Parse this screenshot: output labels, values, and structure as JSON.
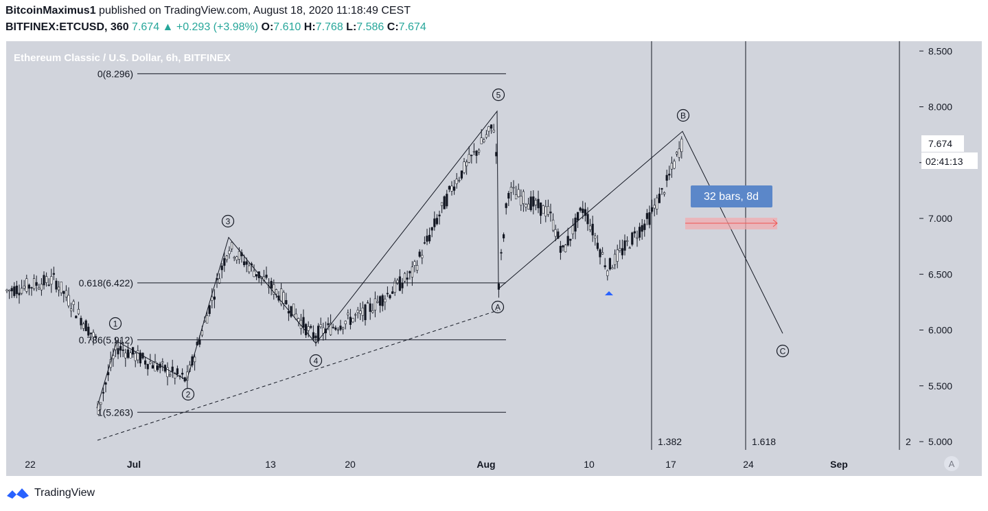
{
  "header": {
    "author": "BitcoinMaximus1",
    "published_text": "published on TradingView.com, August 18, 2020 11:18:49 CEST",
    "symbol": "BITFINEX:ETCUSD, 360",
    "last": "7.674",
    "change": "+0.293 (+3.98%)",
    "o_label": "O:",
    "o_val": "7.610",
    "h_label": "H:",
    "h_val": "7.768",
    "l_label": "L:",
    "l_val": "7.586",
    "c_label": "C:",
    "c_val": "7.674"
  },
  "colors": {
    "up": "#26a69a",
    "plot_bg": "#d1d4dc",
    "accent": "#2962ff"
  },
  "footer": {
    "brand": "TradingView",
    "icon": "tradingview-logo-icon"
  },
  "chart_data": {
    "type": "candlestick",
    "title": "Ethereum Classic / U.S. Dollar, 6h, BITFINEX",
    "ylim": [
      4.9,
      8.6
    ],
    "y_ticks": [
      "8.500",
      "8.000",
      "7.500",
      "7.000",
      "6.500",
      "6.000",
      "5.500",
      "5.000"
    ],
    "y_tick_values": [
      8.5,
      8.0,
      7.5,
      7.0,
      6.5,
      6.0,
      5.5,
      5.0
    ],
    "x_ticks": [
      "22",
      "Jul",
      "13",
      "20",
      "Aug",
      "10",
      "17",
      "24",
      "Sep"
    ],
    "last_price_label": "7.674",
    "countdown_label": "02:41:13",
    "scale_button": "A",
    "fib_levels": [
      {
        "label": "0(8.296)",
        "value": 8.296
      },
      {
        "label": "0.618(6.422)",
        "value": 6.422
      },
      {
        "label": "0.786(5.912)",
        "value": 5.912
      },
      {
        "label": "1(5.263)",
        "value": 5.263
      }
    ],
    "fib_time_labels": [
      "1.382",
      "1.618",
      "2"
    ],
    "wave_labels": [
      "1",
      "2",
      "3",
      "4",
      "5",
      "A",
      "B",
      "C"
    ],
    "wave_path": [
      {
        "label": "start",
        "y": 5.3
      },
      {
        "label": "1",
        "y": 5.9
      },
      {
        "label": "2",
        "y": 5.55
      },
      {
        "label": "3",
        "y": 6.83
      },
      {
        "label": "4",
        "y": 5.88
      },
      {
        "label": "5",
        "y": 7.96
      },
      {
        "label": "A",
        "y": 6.37
      },
      {
        "label": "B",
        "y": 7.78
      },
      {
        "label": "C",
        "y": 5.97
      }
    ],
    "measure_label": "32 bars, 8d"
  }
}
